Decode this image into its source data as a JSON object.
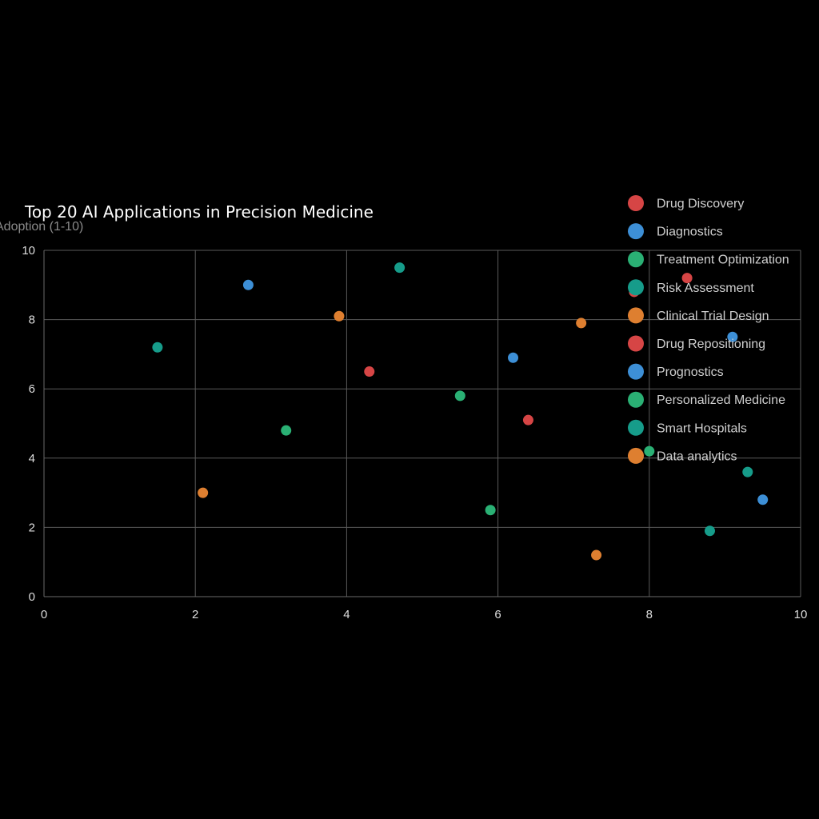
{
  "chart_data": {
    "type": "scatter",
    "title": "Top 20 AI Applications in Precision Medicine",
    "xlabel": "",
    "ylabel": "Adoption (1-10)",
    "xlim": [
      0,
      10
    ],
    "ylim": [
      0,
      10
    ],
    "x_ticks": [
      0,
      2,
      4,
      6,
      8,
      10
    ],
    "y_ticks": [
      0,
      2,
      4,
      6,
      8,
      10
    ],
    "grid": true,
    "legend_position": "top-right",
    "series": [
      {
        "name": "Drug Discovery",
        "color": "#d64545",
        "points": [
          {
            "x": 7.8,
            "y": 8.8
          }
        ]
      },
      {
        "name": "Diagnostics",
        "color": "#3d8fd6",
        "points": [
          {
            "x": 2.7,
            "y": 9.0
          },
          {
            "x": 6.2,
            "y": 6.9
          }
        ]
      },
      {
        "name": "Treatment Optimization",
        "color": "#2ab074",
        "points": [
          {
            "x": 3.2,
            "y": 4.8
          }
        ]
      },
      {
        "name": "Risk Assessment",
        "color": "#169c8a",
        "points": [
          {
            "x": 1.5,
            "y": 7.2
          },
          {
            "x": 4.7,
            "y": 9.5
          }
        ]
      },
      {
        "name": "Clinical Trial Design",
        "color": "#de7f30",
        "points": [
          {
            "x": 3.9,
            "y": 8.1
          },
          {
            "x": 2.1,
            "y": 3.0
          }
        ]
      },
      {
        "name": "Drug Repositioning",
        "color": "#d64545",
        "points": [
          {
            "x": 4.3,
            "y": 6.5
          },
          {
            "x": 6.4,
            "y": 5.1
          },
          {
            "x": 8.5,
            "y": 9.2
          }
        ]
      },
      {
        "name": "Prognostics",
        "color": "#3d8fd6",
        "points": [
          {
            "x": 9.1,
            "y": 7.5
          },
          {
            "x": 9.5,
            "y": 2.8
          }
        ]
      },
      {
        "name": "Personalized Medicine",
        "color": "#2ab074",
        "points": [
          {
            "x": 5.5,
            "y": 5.8
          },
          {
            "x": 5.9,
            "y": 2.5
          },
          {
            "x": 8.0,
            "y": 4.2
          }
        ]
      },
      {
        "name": "Smart Hospitals",
        "color": "#169c8a",
        "points": [
          {
            "x": 9.3,
            "y": 3.6
          },
          {
            "x": 8.8,
            "y": 1.9
          }
        ]
      },
      {
        "name": "Data analytics",
        "color": "#de7f30",
        "points": [
          {
            "x": 7.1,
            "y": 7.9
          },
          {
            "x": 7.3,
            "y": 1.2
          }
        ]
      }
    ]
  }
}
